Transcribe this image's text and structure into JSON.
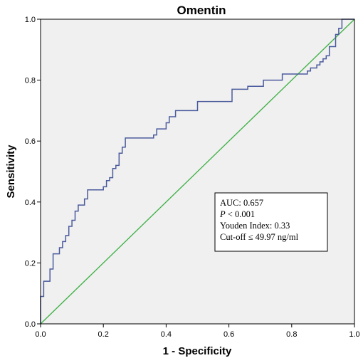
{
  "chart_data": {
    "type": "line",
    "title": "Omentin",
    "xlabel": "1 - Specificity",
    "ylabel": "Sensitivity",
    "xlim": [
      0,
      1
    ],
    "ylim": [
      0,
      1
    ],
    "xticks": [
      "0.0",
      "0.2",
      "0.4",
      "0.6",
      "0.8",
      "1.0"
    ],
    "yticks": [
      "0.0",
      "0.2",
      "0.4",
      "0.6",
      "0.8",
      "1.0"
    ],
    "grid": false,
    "colors": {
      "roc": "#4a5a9c",
      "reference": "#3cb043",
      "plot_bg": "#f0f0f0"
    },
    "series": [
      {
        "type": "step",
        "points": [
          [
            0.0,
            0.0
          ],
          [
            0.0,
            0.09
          ],
          [
            0.01,
            0.09
          ],
          [
            0.01,
            0.14
          ],
          [
            0.03,
            0.14
          ],
          [
            0.03,
            0.18
          ],
          [
            0.04,
            0.18
          ],
          [
            0.04,
            0.23
          ],
          [
            0.06,
            0.23
          ],
          [
            0.06,
            0.25
          ],
          [
            0.07,
            0.25
          ],
          [
            0.07,
            0.27
          ],
          [
            0.08,
            0.27
          ],
          [
            0.08,
            0.29
          ],
          [
            0.09,
            0.29
          ],
          [
            0.09,
            0.32
          ],
          [
            0.1,
            0.32
          ],
          [
            0.1,
            0.34
          ],
          [
            0.11,
            0.34
          ],
          [
            0.11,
            0.37
          ],
          [
            0.12,
            0.37
          ],
          [
            0.12,
            0.39
          ],
          [
            0.14,
            0.39
          ],
          [
            0.14,
            0.41
          ],
          [
            0.15,
            0.41
          ],
          [
            0.15,
            0.44
          ],
          [
            0.2,
            0.44
          ],
          [
            0.2,
            0.45
          ],
          [
            0.21,
            0.45
          ],
          [
            0.21,
            0.47
          ],
          [
            0.22,
            0.47
          ],
          [
            0.22,
            0.48
          ],
          [
            0.23,
            0.48
          ],
          [
            0.23,
            0.51
          ],
          [
            0.24,
            0.51
          ],
          [
            0.24,
            0.52
          ],
          [
            0.25,
            0.52
          ],
          [
            0.25,
            0.56
          ],
          [
            0.26,
            0.56
          ],
          [
            0.26,
            0.58
          ],
          [
            0.27,
            0.58
          ],
          [
            0.27,
            0.61
          ],
          [
            0.36,
            0.61
          ],
          [
            0.36,
            0.62
          ],
          [
            0.37,
            0.62
          ],
          [
            0.37,
            0.64
          ],
          [
            0.4,
            0.64
          ],
          [
            0.4,
            0.66
          ],
          [
            0.41,
            0.66
          ],
          [
            0.41,
            0.68
          ],
          [
            0.43,
            0.68
          ],
          [
            0.43,
            0.7
          ],
          [
            0.5,
            0.7
          ],
          [
            0.5,
            0.73
          ],
          [
            0.61,
            0.73
          ],
          [
            0.61,
            0.77
          ],
          [
            0.66,
            0.77
          ],
          [
            0.66,
            0.78
          ],
          [
            0.71,
            0.78
          ],
          [
            0.71,
            0.8
          ],
          [
            0.77,
            0.8
          ],
          [
            0.77,
            0.82
          ],
          [
            0.85,
            0.82
          ],
          [
            0.85,
            0.83
          ],
          [
            0.86,
            0.83
          ],
          [
            0.86,
            0.84
          ],
          [
            0.88,
            0.84
          ],
          [
            0.88,
            0.85
          ],
          [
            0.89,
            0.85
          ],
          [
            0.89,
            0.86
          ],
          [
            0.9,
            0.86
          ],
          [
            0.9,
            0.87
          ],
          [
            0.91,
            0.87
          ],
          [
            0.91,
            0.88
          ],
          [
            0.92,
            0.88
          ],
          [
            0.92,
            0.91
          ],
          [
            0.94,
            0.91
          ],
          [
            0.94,
            0.95
          ],
          [
            0.95,
            0.95
          ],
          [
            0.95,
            0.97
          ],
          [
            0.96,
            0.97
          ],
          [
            0.96,
            1.0
          ],
          [
            1.0,
            1.0
          ]
        ]
      },
      {
        "type": "reference",
        "points": [
          [
            0,
            0
          ],
          [
            1,
            1
          ]
        ]
      }
    ],
    "annotation_lines": [
      "AUC: 0.657",
      "< 0.001",
      "Youden Index: 0.33",
      "Cut-off ≤ 49.97 ng/ml"
    ],
    "annotation_p_symbol": "P"
  }
}
